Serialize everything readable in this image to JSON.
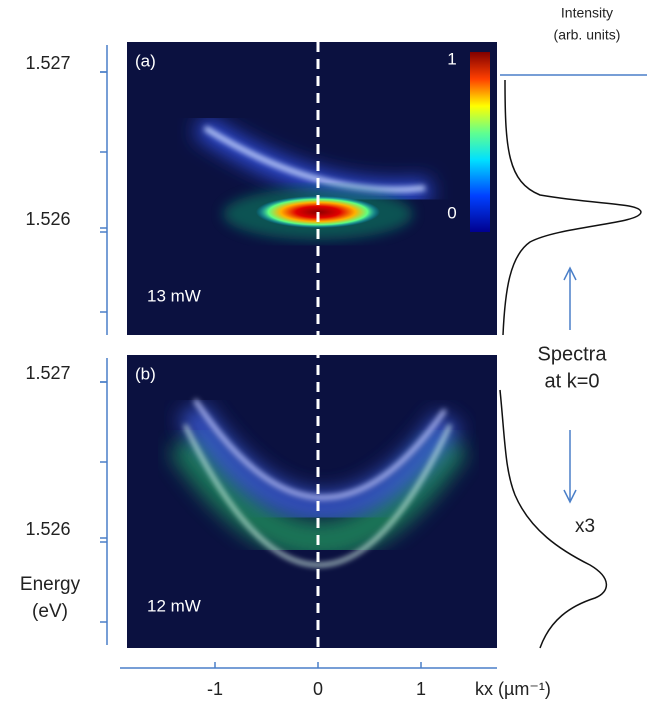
{
  "figure": {
    "intensity_label": [
      "Intensity",
      "(arb. units)"
    ],
    "energy_label": [
      "Energy",
      "(eV)"
    ],
    "x_axis": {
      "ticks": [
        -1,
        0,
        1
      ],
      "label": "kx (µm⁻¹)"
    },
    "panels": [
      {
        "tag": "(a)",
        "power": "13 mW",
        "yticks": [
          1.527,
          1.526
        ],
        "colorbar": [
          1,
          0
        ]
      },
      {
        "tag": "(b)",
        "power": "12 mW",
        "yticks": [
          1.527,
          1.526
        ]
      }
    ],
    "spectra_note": [
      "Spectra",
      "at k=0"
    ],
    "scale_note": "x3"
  }
}
